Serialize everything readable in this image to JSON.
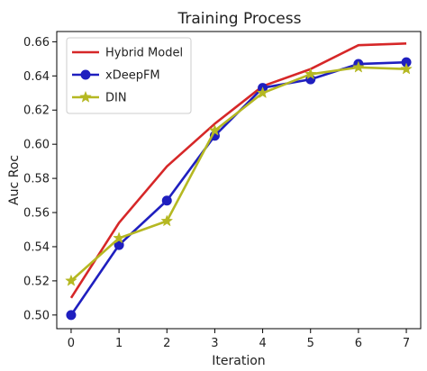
{
  "chart_data": {
    "type": "line",
    "title": "Training Process",
    "xlabel": "Iteration",
    "ylabel": "Auc Roc",
    "x": [
      0,
      1,
      2,
      3,
      4,
      5,
      6,
      7
    ],
    "xlim": [
      -0.3,
      7.3
    ],
    "ylim": [
      0.492,
      0.666
    ],
    "x_ticks": [
      "0",
      "1",
      "2",
      "3",
      "4",
      "5",
      "6",
      "7"
    ],
    "y_ticks": [
      "0.50",
      "0.52",
      "0.54",
      "0.56",
      "0.58",
      "0.60",
      "0.62",
      "0.64",
      "0.66"
    ],
    "grid": false,
    "legend_position": "top-left",
    "series": [
      {
        "name": "Hybrid Model",
        "color": "#d62728",
        "marker": "none",
        "values": [
          0.51,
          0.554,
          0.587,
          0.612,
          0.634,
          0.644,
          0.658,
          0.659
        ]
      },
      {
        "name": "xDeepFM",
        "color": "#1f1fbf",
        "marker": "circle",
        "values": [
          0.5,
          0.541,
          0.567,
          0.605,
          0.633,
          0.638,
          0.647,
          0.648
        ]
      },
      {
        "name": "DIN",
        "color": "#b5b822",
        "marker": "star",
        "values": [
          0.52,
          0.545,
          0.555,
          0.608,
          0.63,
          0.641,
          0.645,
          0.644
        ]
      }
    ]
  }
}
